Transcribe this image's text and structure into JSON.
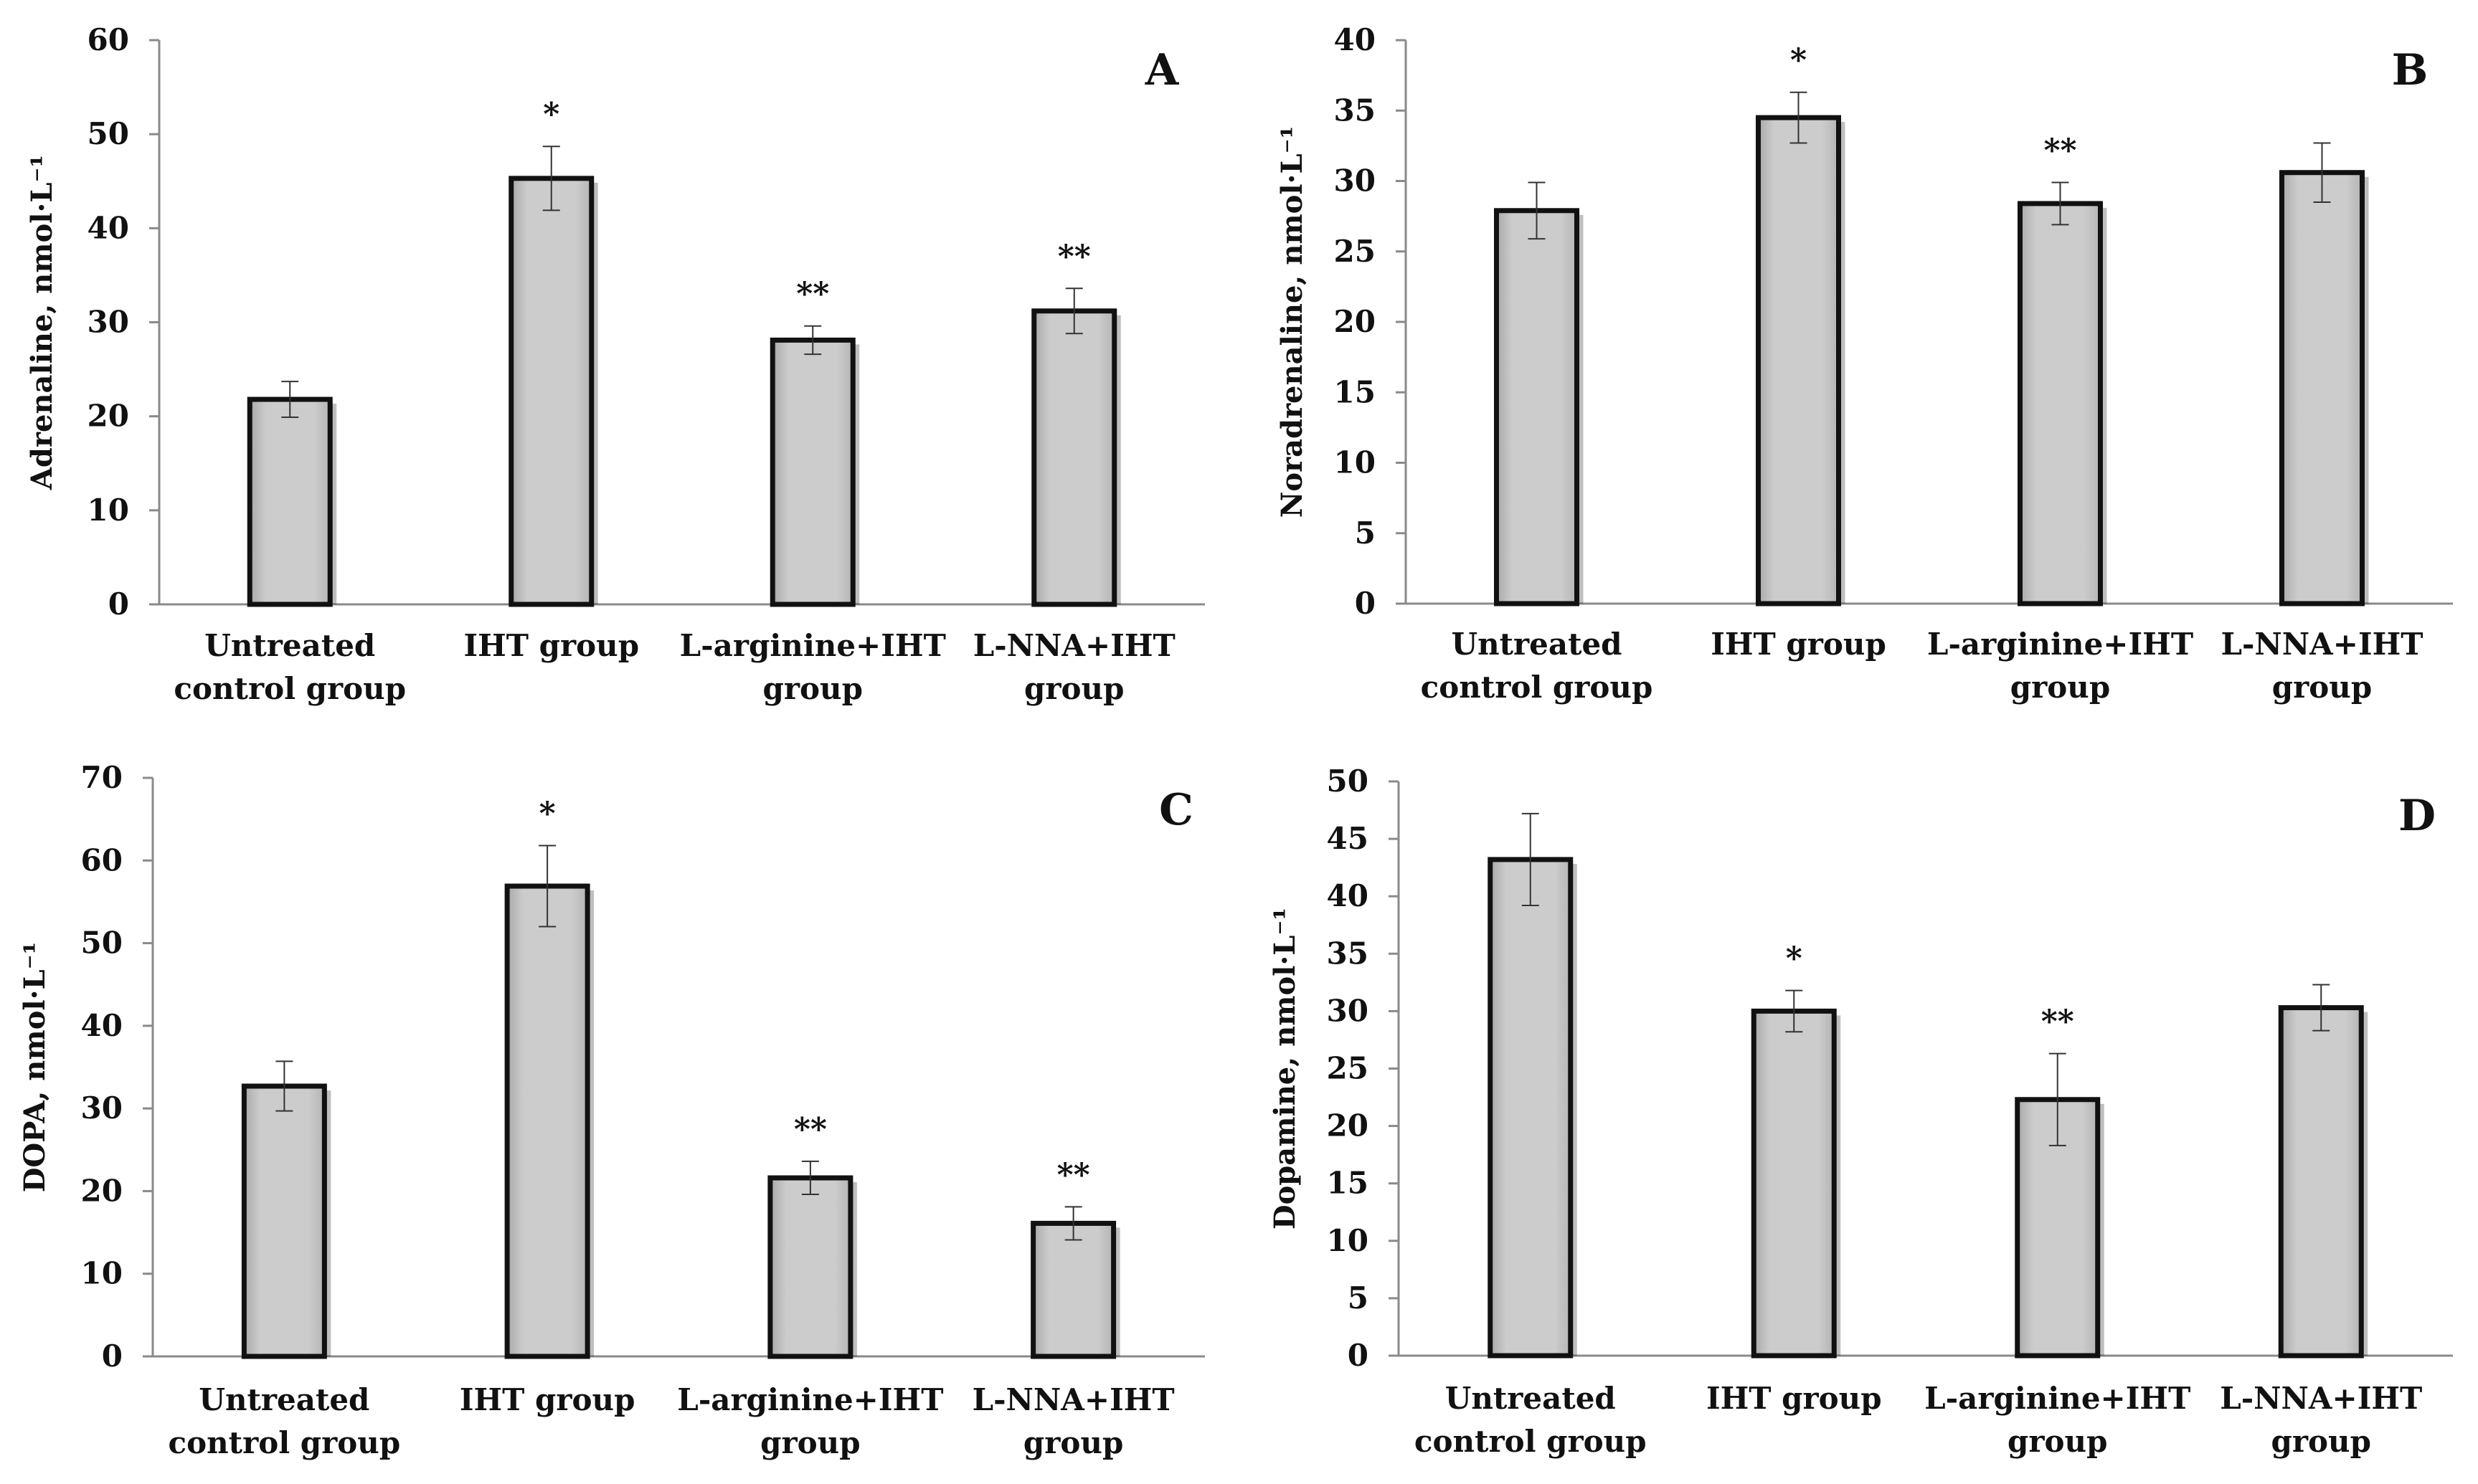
{
  "figure": {
    "bar_color": "#cccccc",
    "bar_edge_color": "#111111",
    "axis_color": "#8a8a8a"
  },
  "chart_data": [
    {
      "panel": "A",
      "type": "bar",
      "ylabel": "Adrenaline, nmol·L⁻¹",
      "ylim": [
        0,
        60
      ],
      "yticks": [
        0,
        10,
        20,
        30,
        40,
        50,
        60
      ],
      "categories": [
        [
          "Untreated",
          "control group"
        ],
        [
          "IHT group"
        ],
        [
          "L-arginine+IHT",
          "group"
        ],
        [
          "L-NNA+IHT",
          "group"
        ]
      ],
      "values": [
        21.8,
        45.3,
        28.1,
        31.2
      ],
      "errors": [
        1.9,
        3.4,
        1.5,
        2.4
      ],
      "significance": [
        "",
        "*",
        "**",
        "**"
      ]
    },
    {
      "panel": "B",
      "type": "bar",
      "ylabel": "Noradrenaline, nmol·L⁻¹",
      "ylim": [
        0,
        40
      ],
      "yticks": [
        0,
        5,
        10,
        15,
        20,
        25,
        30,
        35,
        40
      ],
      "categories": [
        [
          "Untreated",
          "control group"
        ],
        [
          "IHT group"
        ],
        [
          "L-arginine+IHT",
          "group"
        ],
        [
          "L-NNA+IHT",
          "group"
        ]
      ],
      "values": [
        27.9,
        34.5,
        28.4,
        30.6
      ],
      "errors": [
        2.0,
        1.8,
        1.5,
        2.1
      ],
      "significance": [
        "",
        "*",
        "**",
        ""
      ]
    },
    {
      "panel": "C",
      "type": "bar",
      "ylabel": "DOPA, nmol·L⁻¹",
      "ylim": [
        0,
        70
      ],
      "yticks": [
        0,
        10,
        20,
        30,
        40,
        50,
        60,
        70
      ],
      "categories": [
        [
          "Untreated",
          "control group"
        ],
        [
          "IHT group"
        ],
        [
          "L-arginine+IHT",
          "group"
        ],
        [
          "L-NNA+IHT",
          "group"
        ]
      ],
      "values": [
        32.7,
        56.9,
        21.6,
        16.1
      ],
      "errors": [
        3.0,
        4.9,
        2.0,
        2.0
      ],
      "significance": [
        "",
        "*",
        "**",
        "**"
      ]
    },
    {
      "panel": "D",
      "type": "bar",
      "ylabel": "Dopamine, nmol·L⁻¹",
      "ylim": [
        0,
        50
      ],
      "yticks": [
        0,
        5,
        10,
        15,
        20,
        25,
        30,
        35,
        40,
        45,
        50
      ],
      "categories": [
        [
          "Untreated",
          "control group"
        ],
        [
          "IHT group"
        ],
        [
          "L-arginine+IHT",
          "group"
        ],
        [
          "L-NNA+IHT",
          "group"
        ]
      ],
      "values": [
        43.2,
        30.0,
        22.3,
        30.3
      ],
      "errors": [
        4.0,
        1.8,
        4.0,
        2.0
      ],
      "significance": [
        "",
        "*",
        "**",
        ""
      ]
    }
  ]
}
